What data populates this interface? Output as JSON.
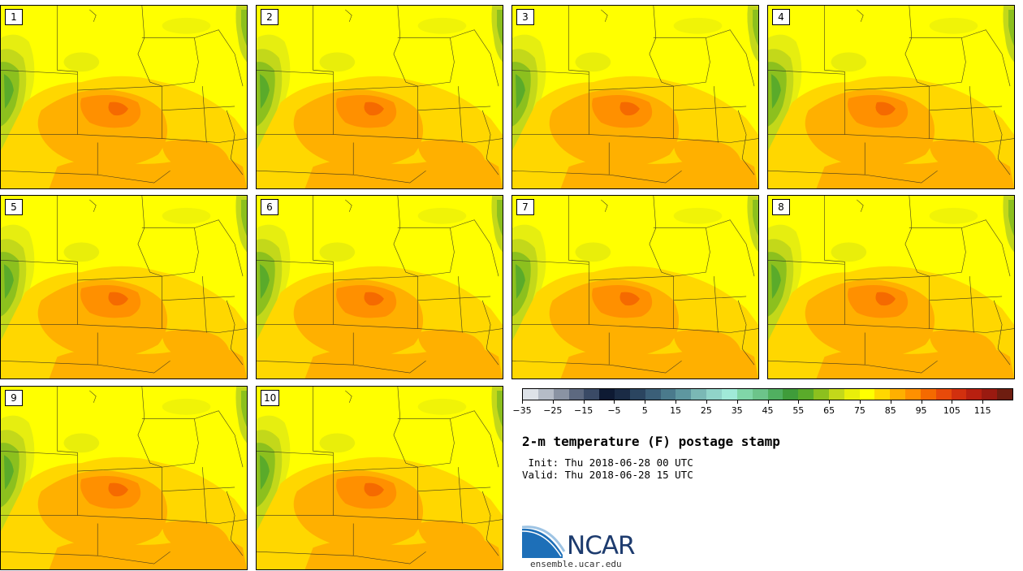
{
  "panels": [
    {
      "label": "1"
    },
    {
      "label": "2"
    },
    {
      "label": "3"
    },
    {
      "label": "4"
    },
    {
      "label": "5"
    },
    {
      "label": "6"
    },
    {
      "label": "7"
    },
    {
      "label": "8"
    },
    {
      "label": "9"
    },
    {
      "label": "10"
    }
  ],
  "colorbar": {
    "colors": [
      "#dde2e8",
      "#b5bcc7",
      "#8a93a3",
      "#5d6980",
      "#3a4a66",
      "#0e1a33",
      "#1a2b45",
      "#2b4560",
      "#3b5f78",
      "#4a7a8c",
      "#5e97a0",
      "#7ab8b5",
      "#90d4c9",
      "#a0ead8",
      "#80d6a8",
      "#6cc48a",
      "#50b060",
      "#3f9c3a",
      "#5aab2a",
      "#8cc01e",
      "#c3d81a",
      "#e9ee0a",
      "#ffff00",
      "#ffd700",
      "#ffb000",
      "#ff9000",
      "#f56a00",
      "#e84a0a",
      "#d2300e",
      "#b82010",
      "#9a1a10",
      "#6e1d10"
    ],
    "tick_labels": [
      "−35",
      "−25",
      "−15",
      "−5",
      "5",
      "15",
      "25",
      "35",
      "45",
      "55",
      "65",
      "75",
      "85",
      "95",
      "105",
      "115"
    ]
  },
  "title": "2-m temperature (F) postage stamp",
  "init": " Init: Thu 2018-06-28 00 UTC",
  "valid": "Valid: Thu 2018-06-28 15 UTC",
  "logo": {
    "text": "NCAR",
    "url": "ensemble.ucar.edu"
  }
}
